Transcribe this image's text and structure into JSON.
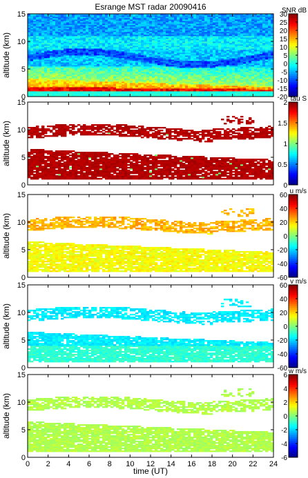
{
  "chart_data": {
    "title": "Esrange MST radar 20090416",
    "xlabel": "time (UT)",
    "x_ticks": [
      "0",
      "2",
      "4",
      "6",
      "8",
      "10",
      "12",
      "14",
      "16",
      "18",
      "20",
      "22",
      "24"
    ],
    "xlim": [
      0,
      24
    ],
    "panels": [
      {
        "type": "heatmap",
        "ylabel": "altitude (km)",
        "ylim": [
          0,
          15
        ],
        "y_ticks": [
          "0",
          "5",
          "10",
          "15"
        ],
        "colorbar_label": "SNR dB",
        "colorbar_range": [
          -20,
          30
        ],
        "colorbar_ticks": [
          "30",
          "25",
          "20",
          "15",
          "10",
          "5",
          "0",
          "-5",
          "-10",
          "-15",
          "-20"
        ],
        "colormap": "jet",
        "field": "snr"
      },
      {
        "type": "heatmap",
        "ylabel": "altitude (km)",
        "ylim": [
          0,
          15
        ],
        "y_ticks": [
          "0",
          "5",
          "10",
          "15"
        ],
        "colorbar_label": "tau S",
        "colorbar_range": [
          0,
          2
        ],
        "colorbar_ticks": [
          "2",
          "1.5",
          "1",
          "0.5",
          "0"
        ],
        "colormap": "jet",
        "field": "tau"
      },
      {
        "type": "heatmap",
        "ylabel": "altitude (km)",
        "ylim": [
          0,
          15
        ],
        "y_ticks": [
          "0",
          "5",
          "10",
          "15"
        ],
        "colorbar_label": "u m/s",
        "colorbar_range": [
          -60,
          60
        ],
        "colorbar_ticks": [
          "60",
          "40",
          "20",
          "0",
          "-20",
          "-40",
          "-60"
        ],
        "colormap": "jet",
        "field": "u"
      },
      {
        "type": "heatmap",
        "ylabel": "altitude (km)",
        "ylim": [
          0,
          15
        ],
        "y_ticks": [
          "0",
          "5",
          "10",
          "15"
        ],
        "colorbar_label": "v m/s",
        "colorbar_range": [
          -60,
          60
        ],
        "colorbar_ticks": [
          "60",
          "40",
          "20",
          "0",
          "-20",
          "-40",
          "-60"
        ],
        "colormap": "jet",
        "field": "v"
      },
      {
        "type": "heatmap",
        "ylabel": "altitude (km)",
        "ylim": [
          0,
          15
        ],
        "y_ticks": [
          "0",
          "5",
          "10",
          "15"
        ],
        "colorbar_label": "w m/s",
        "colorbar_range": [
          -6,
          6
        ],
        "colorbar_ticks": [
          "6",
          "4",
          "2",
          "0",
          "-2",
          "-4",
          "-6"
        ],
        "colormap": "jet",
        "field": "w"
      }
    ]
  }
}
